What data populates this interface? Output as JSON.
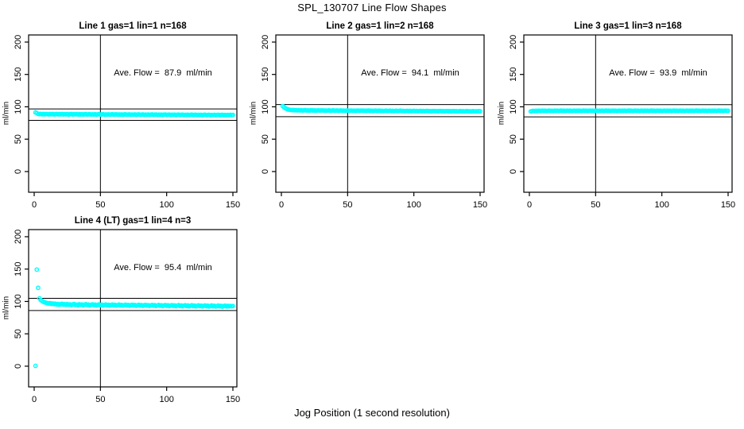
{
  "figure": {
    "title": "SPL_130707  Line Flow Shapes",
    "x_axis_caption": "Jog Position (1 second resolution)",
    "y_axis_label": "ml/min",
    "background_color": "#ffffff",
    "point_color": "#00ffff",
    "line_color": "#000000"
  },
  "chart_data": {
    "type": "scatter",
    "layout": "2x3 grid, panels 1-3 top row, panel 4 bottom-left",
    "shared_axes": {
      "x_tick_labels": [
        "0",
        "50",
        "100",
        "150"
      ],
      "x_ticks": [
        0,
        50,
        100,
        150
      ],
      "y_tick_labels": [
        "0",
        "50",
        "100",
        "150",
        "200"
      ],
      "y_ticks": [
        0,
        50,
        100,
        150,
        200
      ],
      "x_range": [
        -4.2,
        153.0
      ],
      "y_range": [
        -32,
        211
      ],
      "vline_x": 50,
      "grid": false,
      "marker": "open-circle"
    },
    "panels": [
      {
        "title": "Line 1 gas=1 lin=1 n=168",
        "annotation": "Ave. Flow =  87.9  ml/min",
        "ave_flow_ml_min": 87.9,
        "ref_lines": [
          96.7,
          79.1
        ],
        "x_start": 1,
        "y": [
          91.3,
          90.2,
          89.1,
          88.7,
          89.0,
          88.5,
          88.8,
          88.4,
          88.9,
          88.6,
          88.3,
          88.8,
          88.5,
          88.9,
          88.2,
          88.6,
          88.8,
          88.3,
          88.7,
          88.4,
          88.8,
          88.2,
          88.6,
          88.3,
          88.7,
          88.1,
          88.5,
          88.8,
          88.2,
          88.6,
          88.3,
          88.7,
          88.1,
          88.5,
          88.2,
          88.6,
          88.0,
          88.5,
          88.7,
          88.1,
          88.4,
          88.6,
          88.0,
          88.4,
          88.1,
          88.5,
          87.9,
          88.4,
          88.6,
          88.0,
          88.3,
          88.5,
          87.9,
          88.3,
          88.0,
          88.4,
          87.8,
          88.3,
          88.5,
          87.9,
          88.2,
          88.4,
          87.8,
          88.2,
          87.9,
          88.3,
          87.7,
          88.2,
          88.4,
          87.8,
          88.1,
          88.3,
          87.7,
          88.1,
          87.8,
          88.2,
          87.6,
          88.1,
          88.3,
          87.7,
          88.0,
          88.2,
          87.6,
          88.0,
          87.7,
          88.1,
          87.5,
          88.0,
          88.2,
          87.6,
          87.9,
          88.1,
          87.5,
          87.9,
          87.6,
          88.0,
          87.4,
          87.9,
          88.1,
          87.5,
          87.8,
          88.0,
          87.4,
          87.8,
          87.5,
          87.9,
          87.3,
          87.8,
          88.0,
          87.4,
          87.7,
          87.9,
          87.3,
          87.7,
          87.4,
          87.8,
          87.2,
          87.7,
          87.9,
          87.3,
          87.6,
          87.8,
          87.2,
          87.6,
          87.3,
          87.7,
          87.1,
          87.6,
          87.8,
          87.2,
          87.5,
          87.7,
          87.1,
          87.5,
          87.2,
          87.6,
          87.0,
          87.5,
          87.7,
          87.1,
          87.4,
          87.6,
          87.0,
          87.4,
          87.1,
          87.5,
          87.3,
          87.6,
          87.2,
          87.4
        ]
      },
      {
        "title": "Line 2 gas=1 lin=2 n=168",
        "annotation": "Ave. Flow =  94.1  ml/min",
        "ave_flow_ml_min": 94.1,
        "ref_lines": [
          103.5,
          84.7
        ],
        "x_start": 1,
        "y": [
          101.2,
          99.4,
          97.8,
          96.7,
          96.0,
          95.5,
          95.2,
          94.9,
          95.1,
          94.7,
          94.9,
          94.5,
          94.8,
          94.4,
          94.7,
          94.3,
          94.6,
          94.8,
          94.3,
          94.6,
          94.2,
          94.5,
          94.7,
          94.2,
          94.5,
          94.1,
          94.4,
          94.6,
          94.1,
          94.4,
          94.6,
          94.1,
          94.4,
          94.0,
          94.3,
          94.5,
          94.0,
          94.3,
          94.5,
          94.0,
          94.2,
          94.4,
          93.9,
          94.2,
          94.4,
          93.9,
          94.2,
          93.8,
          94.1,
          94.3,
          93.9,
          94.1,
          94.3,
          93.8,
          94.1,
          93.7,
          94.0,
          94.2,
          93.8,
          94.1,
          94.3,
          93.8,
          94.0,
          93.7,
          94.0,
          94.2,
          93.7,
          94.0,
          93.6,
          93.9,
          94.1,
          93.7,
          93.9,
          94.1,
          93.6,
          93.9,
          93.5,
          93.8,
          94.0,
          93.6,
          93.8,
          94.0,
          93.5,
          93.8,
          93.4,
          93.7,
          93.9,
          93.5,
          93.8,
          94.0,
          93.5,
          93.7,
          93.3,
          93.6,
          93.8,
          93.4,
          93.7,
          93.3,
          93.6,
          93.8,
          93.4,
          93.6,
          93.2,
          93.5,
          93.7,
          93.3,
          93.6,
          93.2,
          93.5,
          93.7,
          93.3,
          93.5,
          93.1,
          93.4,
          93.6,
          93.2,
          93.5,
          93.1,
          93.4,
          93.6,
          93.2,
          93.4,
          93.0,
          93.3,
          93.5,
          93.1,
          93.4,
          93.0,
          93.3,
          93.5,
          93.1,
          93.3,
          92.9,
          93.2,
          93.4,
          93.0,
          93.3,
          92.9,
          93.2,
          93.4,
          93.0,
          93.2,
          92.8,
          93.1,
          93.3,
          92.9,
          93.2,
          93.0,
          93.3,
          93.1
        ]
      },
      {
        "title": "Line 3 gas=1 lin=3 n=168",
        "annotation": "Ave. Flow =  93.9  ml/min",
        "ave_flow_ml_min": 93.9,
        "ref_lines": [
          103.3,
          84.5
        ],
        "x_start": 1,
        "y": [
          92.9,
          93.5,
          93.8,
          93.4,
          93.9,
          93.5,
          94.0,
          93.6,
          93.9,
          94.1,
          93.6,
          94.0,
          93.5,
          93.9,
          94.1,
          93.6,
          93.9,
          93.5,
          94.0,
          93.7,
          94.1,
          93.6,
          93.9,
          94.2,
          93.7,
          94.0,
          93.6,
          93.9,
          94.1,
          93.7,
          94.0,
          93.5,
          93.9,
          94.1,
          93.6,
          94.0,
          93.7,
          94.1,
          93.6,
          93.9,
          94.2,
          93.7,
          94.0,
          93.6,
          93.9,
          94.1,
          93.7,
          94.0,
          93.5,
          93.9,
          94.1,
          93.6,
          94.0,
          93.7,
          94.1,
          93.6,
          93.9,
          94.2,
          93.7,
          94.0,
          93.6,
          93.9,
          94.1,
          93.7,
          94.0,
          93.5,
          93.9,
          94.1,
          93.6,
          94.0,
          93.7,
          94.1,
          93.6,
          93.9,
          94.2,
          93.7,
          94.0,
          93.6,
          93.9,
          94.1,
          93.7,
          94.0,
          93.5,
          93.9,
          94.1,
          93.6,
          94.0,
          93.7,
          94.1,
          93.6,
          93.9,
          94.2,
          93.7,
          94.0,
          93.6,
          93.9,
          94.1,
          93.7,
          94.0,
          93.5,
          93.9,
          94.1,
          93.6,
          94.0,
          93.7,
          94.1,
          93.6,
          93.9,
          94.2,
          93.7,
          94.0,
          93.6,
          93.9,
          94.1,
          93.7,
          94.0,
          93.5,
          93.9,
          94.1,
          93.6,
          94.0,
          93.7,
          94.1,
          93.6,
          93.9,
          94.2,
          93.7,
          94.0,
          93.6,
          93.9,
          94.1,
          93.7,
          94.0,
          93.5,
          93.9,
          94.1,
          93.6,
          94.0,
          93.7,
          94.1,
          93.6,
          93.9,
          94.2,
          93.7,
          94.0,
          93.6,
          93.9,
          94.1,
          93.7,
          93.9
        ]
      },
      {
        "title": "Line 4 (LT) gas=1 lin=4 n=3",
        "annotation": "Ave. Flow =  95.4  ml/min",
        "ave_flow_ml_min": 95.4,
        "ref_lines": [
          104.9,
          85.9
        ],
        "x_start": 1,
        "y": [
          0.5,
          149.2,
          121.0,
          104.8,
          102.3,
          100.6,
          99.4,
          98.6,
          97.9,
          97.3,
          96.8,
          97.5,
          96.2,
          96.9,
          95.8,
          96.5,
          95.4,
          96.1,
          95.0,
          95.8,
          96.3,
          95.1,
          95.7,
          94.7,
          95.9,
          94.9,
          95.5,
          94.4,
          95.3,
          96.0,
          94.6,
          95.2,
          94.2,
          95.6,
          94.8,
          95.3,
          94.1,
          95.0,
          95.7,
          94.4,
          95.2,
          94.0,
          94.9,
          95.5,
          94.3,
          95.1,
          93.9,
          94.7,
          95.4,
          94.2,
          95.0,
          93.8,
          94.6,
          95.3,
          94.1,
          94.9,
          93.7,
          94.5,
          95.2,
          94.0,
          94.8,
          93.6,
          94.4,
          95.1,
          93.9,
          94.7,
          93.5,
          94.3,
          95.0,
          93.8,
          94.6,
          93.4,
          94.2,
          94.9,
          93.7,
          94.5,
          93.3,
          94.1,
          94.8,
          93.6,
          94.4,
          93.2,
          94.0,
          94.7,
          93.5,
          94.3,
          93.1,
          93.9,
          94.6,
          93.4,
          94.2,
          93.0,
          93.8,
          94.5,
          93.3,
          94.1,
          92.9,
          93.7,
          94.4,
          93.2,
          94.0,
          92.8,
          93.6,
          94.3,
          93.1,
          93.9,
          92.7,
          93.5,
          94.2,
          93.0,
          93.8,
          92.6,
          93.4,
          94.1,
          92.9,
          93.7,
          92.5,
          93.3,
          94.0,
          92.8,
          93.6,
          92.4,
          93.2,
          93.9,
          92.7,
          93.5,
          92.3,
          93.1,
          93.8,
          92.6,
          93.4,
          92.2,
          93.0,
          93.7,
          92.5,
          93.3,
          92.1,
          92.9,
          93.6,
          92.4,
          93.2,
          92.0,
          92.8,
          93.5,
          92.3,
          93.1,
          92.4,
          93.0,
          92.6,
          92.9
        ]
      }
    ]
  }
}
